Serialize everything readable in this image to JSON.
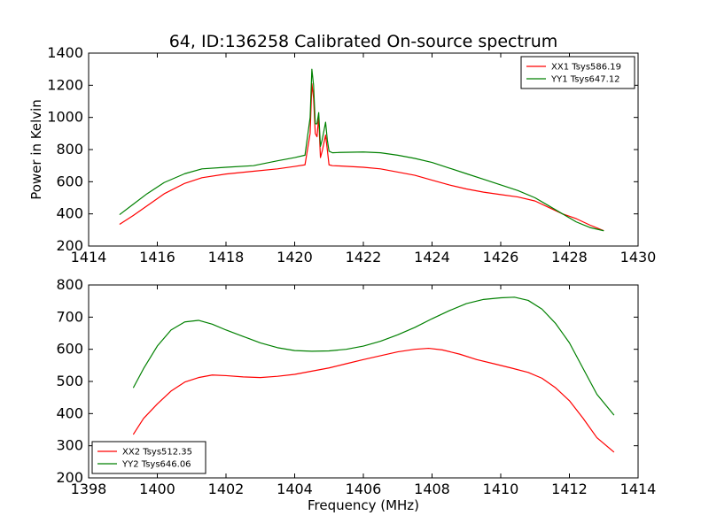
{
  "chart_data": [
    {
      "type": "line",
      "title": "64, ID:136258 Calibrated On-source spectrum",
      "xlabel": "",
      "ylabel": "Power in Kelvin",
      "xlim": [
        1414,
        1430
      ],
      "ylim": [
        200,
        1400
      ],
      "xticks": [
        1414,
        1416,
        1418,
        1420,
        1422,
        1424,
        1426,
        1428,
        1430
      ],
      "yticks": [
        200,
        400,
        600,
        800,
        1000,
        1200,
        1400
      ],
      "legend_position": "top-right",
      "series": [
        {
          "name": "XX1 Tsys586.19",
          "color": "#ff0000",
          "x": [
            1414.9,
            1415.3,
            1415.7,
            1416.2,
            1416.8,
            1417.3,
            1418.0,
            1418.8,
            1419.5,
            1420.0,
            1420.3,
            1420.45,
            1420.5,
            1420.55,
            1420.6,
            1420.65,
            1420.7,
            1420.75,
            1420.8,
            1420.9,
            1420.95,
            1421.0,
            1421.1,
            1421.3,
            1422.0,
            1422.5,
            1423.0,
            1423.5,
            1424.0,
            1424.5,
            1425.0,
            1425.5,
            1426.0,
            1426.5,
            1427.0,
            1427.4,
            1427.8,
            1428.2,
            1428.6,
            1429.0
          ],
          "values": [
            335,
            390,
            450,
            525,
            590,
            625,
            648,
            665,
            680,
            695,
            705,
            900,
            1210,
            1120,
            900,
            880,
            1000,
            750,
            790,
            890,
            800,
            705,
            700,
            698,
            690,
            680,
            660,
            640,
            610,
            580,
            555,
            535,
            520,
            505,
            480,
            440,
            400,
            370,
            330,
            295
          ]
        },
        {
          "name": "YY1 Tsys647.12",
          "color": "#008000",
          "x": [
            1414.9,
            1415.3,
            1415.7,
            1416.2,
            1416.8,
            1417.3,
            1418.0,
            1418.8,
            1419.5,
            1420.0,
            1420.3,
            1420.45,
            1420.5,
            1420.55,
            1420.6,
            1420.65,
            1420.7,
            1420.75,
            1420.8,
            1420.9,
            1420.95,
            1421.0,
            1421.1,
            1421.3,
            1422.0,
            1422.5,
            1423.0,
            1423.5,
            1424.0,
            1424.5,
            1425.0,
            1425.5,
            1426.0,
            1426.5,
            1427.0,
            1427.4,
            1427.8,
            1428.2,
            1428.6,
            1429.0
          ],
          "values": [
            395,
            460,
            525,
            595,
            650,
            680,
            690,
            700,
            730,
            750,
            765,
            1000,
            1300,
            1200,
            960,
            960,
            1030,
            820,
            860,
            970,
            860,
            790,
            780,
            782,
            785,
            780,
            765,
            745,
            720,
            685,
            650,
            615,
            580,
            545,
            500,
            450,
            400,
            350,
            315,
            295
          ]
        }
      ]
    },
    {
      "type": "line",
      "title": "",
      "xlabel": "Frequency (MHz)",
      "ylabel": "",
      "xlim": [
        1398,
        1414
      ],
      "ylim": [
        200,
        800
      ],
      "xticks": [
        1398,
        1400,
        1402,
        1404,
        1406,
        1408,
        1410,
        1412,
        1414
      ],
      "yticks": [
        200,
        300,
        400,
        500,
        600,
        700,
        800
      ],
      "legend_position": "bottom-left",
      "series": [
        {
          "name": "XX2 Tsys512.35",
          "color": "#ff0000",
          "x": [
            1399.3,
            1399.6,
            1400.0,
            1400.4,
            1400.8,
            1401.2,
            1401.6,
            1402.0,
            1402.5,
            1403.0,
            1403.5,
            1404.0,
            1404.5,
            1405.0,
            1405.5,
            1406.0,
            1406.5,
            1407.0,
            1407.5,
            1407.9,
            1408.3,
            1408.8,
            1409.3,
            1409.8,
            1410.3,
            1410.8,
            1411.2,
            1411.6,
            1412.0,
            1412.4,
            1412.8,
            1413.3
          ],
          "values": [
            335,
            385,
            430,
            470,
            498,
            512,
            520,
            518,
            514,
            512,
            516,
            522,
            532,
            542,
            555,
            568,
            580,
            592,
            600,
            603,
            598,
            585,
            568,
            555,
            542,
            528,
            510,
            480,
            440,
            385,
            325,
            280
          ]
        },
        {
          "name": "YY2 Tsys646.06",
          "color": "#008000",
          "x": [
            1399.3,
            1399.6,
            1400.0,
            1400.4,
            1400.8,
            1401.2,
            1401.6,
            1402.0,
            1402.5,
            1403.0,
            1403.5,
            1404.0,
            1404.5,
            1405.0,
            1405.5,
            1406.0,
            1406.5,
            1407.0,
            1407.5,
            1408.0,
            1408.5,
            1409.0,
            1409.5,
            1410.0,
            1410.4,
            1410.8,
            1411.2,
            1411.6,
            1412.0,
            1412.4,
            1412.8,
            1413.3
          ],
          "values": [
            480,
            540,
            610,
            660,
            685,
            690,
            678,
            660,
            640,
            620,
            605,
            596,
            594,
            595,
            600,
            610,
            625,
            645,
            668,
            695,
            720,
            742,
            755,
            760,
            762,
            752,
            725,
            680,
            620,
            540,
            460,
            395
          ]
        }
      ]
    }
  ]
}
